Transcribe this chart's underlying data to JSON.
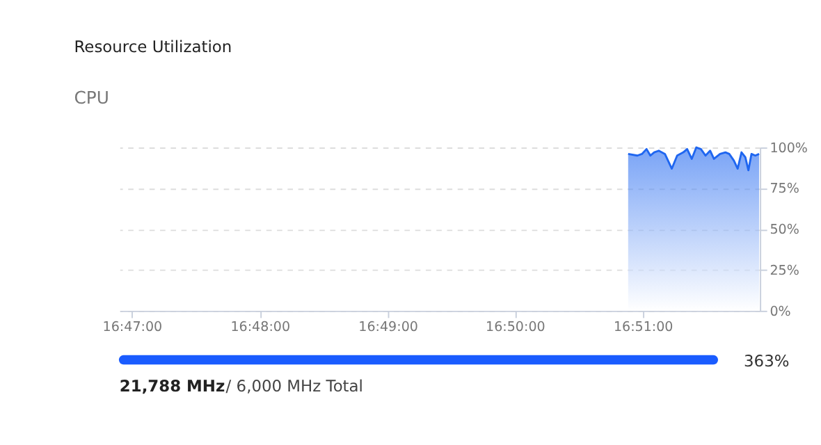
{
  "chart_data": [
    {
      "type": "area",
      "title": "Resource Utilization",
      "subtitle": "CPU",
      "x": [
        16.8481,
        16.8493,
        16.8499,
        16.8505,
        16.851,
        16.8515,
        16.8521,
        16.8529,
        16.8538,
        16.8545,
        16.8553,
        16.8558,
        16.8564,
        16.857,
        16.8576,
        16.8582,
        16.8588,
        16.8593,
        16.8601,
        16.8608,
        16.8613,
        16.8619,
        16.8624,
        16.8629,
        16.8634,
        16.8638,
        16.8642,
        16.8647,
        16.8652
      ],
      "series": [
        {
          "color": "#1f66f0",
          "values": [
            96,
            95,
            96,
            99,
            95,
            97,
            98,
            96,
            87,
            95,
            97,
            99,
            93,
            100,
            99,
            95,
            98,
            93,
            96,
            97,
            96,
            92,
            87,
            97,
            94,
            86,
            96,
            95,
            96
          ]
        }
      ],
      "xlim": [
        16.7817,
        16.8653
      ],
      "xticks": [
        {
          "value": 16.7833,
          "label": "16:47:00"
        },
        {
          "value": 16.8,
          "label": "16:48:00"
        },
        {
          "value": 16.8167,
          "label": "16:49:00"
        },
        {
          "value": 16.8333,
          "label": "16:50:00"
        },
        {
          "value": 16.85,
          "label": "16:51:00"
        }
      ],
      "ylim": [
        0,
        100
      ],
      "yticks": [
        {
          "value": 0,
          "label": "0%"
        },
        {
          "value": 25,
          "label": "25%"
        },
        {
          "value": 50,
          "label": "50%"
        },
        {
          "value": 75,
          "label": "75%"
        },
        {
          "value": 100,
          "label": "100%"
        }
      ],
      "grid": "y",
      "line_style": "solid",
      "marker": "none"
    },
    {
      "type": "other",
      "color": "#1a5cff",
      "annotations": [
        "363%",
        "21,788 MHz",
        "/ 6,000 MHz Total"
      ]
    }
  ]
}
